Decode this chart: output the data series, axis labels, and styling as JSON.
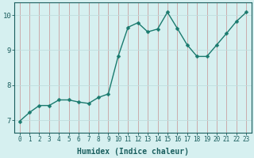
{
  "x": [
    0,
    1,
    2,
    3,
    4,
    5,
    6,
    7,
    8,
    9,
    10,
    11,
    12,
    13,
    14,
    15,
    16,
    17,
    18,
    19,
    20,
    21,
    22,
    23
  ],
  "y": [
    6.97,
    7.22,
    7.42,
    7.42,
    7.58,
    7.58,
    7.52,
    7.48,
    7.65,
    7.75,
    8.82,
    9.65,
    9.78,
    9.52,
    9.6,
    10.08,
    9.62,
    9.15,
    8.82,
    8.82,
    9.15,
    9.48,
    9.82,
    10.08
  ],
  "line_color": "#1a7a6e",
  "marker": "D",
  "markersize": 2.5,
  "linewidth": 1.0,
  "bg_color": "#d6f0f0",
  "grid_color": "#c0dede",
  "grid_color_major": "#c8a0a0",
  "xlabel": "Humidex (Indice chaleur)",
  "xlabel_fontsize": 7,
  "yticks": [
    7,
    8,
    9,
    10
  ],
  "xticks": [
    0,
    1,
    2,
    3,
    4,
    5,
    6,
    7,
    8,
    9,
    10,
    11,
    12,
    13,
    14,
    15,
    16,
    17,
    18,
    19,
    20,
    21,
    22,
    23
  ],
  "xlim": [
    -0.5,
    23.5
  ],
  "ylim": [
    6.65,
    10.35
  ],
  "tick_fontsize": 5.5,
  "tick_color": "#1a5e5e",
  "spine_color": "#1a5e5e"
}
